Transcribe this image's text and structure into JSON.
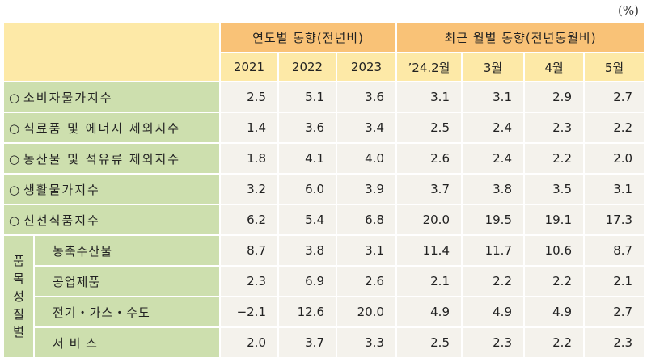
{
  "unit": "(%)",
  "header": {
    "group_yearly": "연도별 동향(전년비)",
    "group_monthly": "최근 월별 동향(전년동월비)",
    "columns": [
      "2021",
      "2022",
      "2023",
      "’24.2월",
      "3월",
      "4월",
      "5월"
    ]
  },
  "bullet": "○",
  "side_group_label": [
    "품",
    "목",
    "성",
    "질",
    "별"
  ],
  "rows": [
    {
      "label": "소비자물가지수",
      "values": [
        "2.5",
        "5.1",
        "3.6",
        "3.1",
        "3.1",
        "2.9",
        "2.7"
      ]
    },
    {
      "label": "식료품 및 에너지 제외지수",
      "values": [
        "1.4",
        "3.6",
        "3.4",
        "2.5",
        "2.4",
        "2.3",
        "2.2"
      ]
    },
    {
      "label": "농산물 및 석유류 제외지수",
      "values": [
        "1.8",
        "4.1",
        "4.0",
        "2.6",
        "2.4",
        "2.2",
        "2.0"
      ]
    },
    {
      "label": "생활물가지수",
      "values": [
        "3.2",
        "6.0",
        "3.9",
        "3.7",
        "3.8",
        "3.5",
        "3.1"
      ]
    },
    {
      "label": "신선식품지수",
      "values": [
        "6.2",
        "5.4",
        "6.8",
        "20.0",
        "19.5",
        "19.1",
        "17.3"
      ]
    }
  ],
  "sub_rows": [
    {
      "label": "농축수산물",
      "values": [
        "8.7",
        "3.8",
        "3.1",
        "11.4",
        "11.7",
        "10.6",
        "8.7"
      ]
    },
    {
      "label": "공업제품",
      "values": [
        "2.3",
        "6.9",
        "2.6",
        "2.1",
        "2.2",
        "2.2",
        "2.1"
      ]
    },
    {
      "label": "전기・가스・수도",
      "values": [
        "−2.1",
        "12.6",
        "20.0",
        "4.9",
        "4.9",
        "4.9",
        "2.7"
      ]
    },
    {
      "label": "서 비 스",
      "values": [
        "2.0",
        "3.7",
        "3.3",
        "2.5",
        "2.3",
        "2.2",
        "2.3"
      ]
    }
  ]
}
